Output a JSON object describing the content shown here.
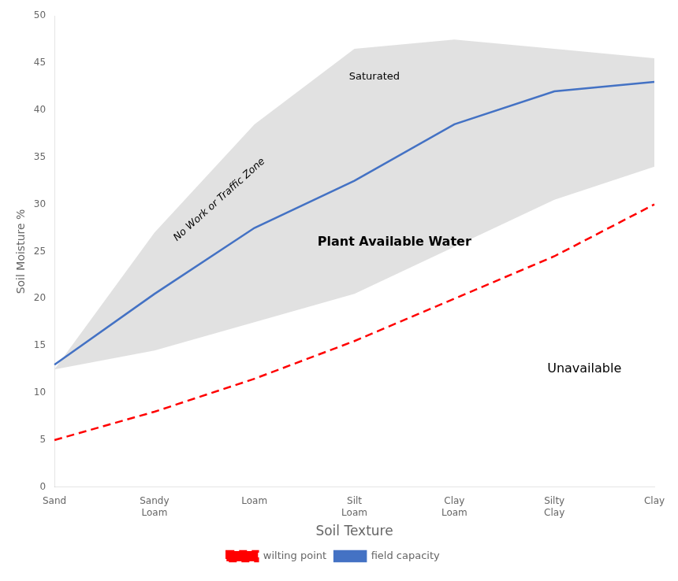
{
  "chart_data": {
    "type": "line",
    "x_label": "Soil Texture",
    "y_label": "Soil Moisture %",
    "categories": [
      "Sand",
      "Sandy\nLoam",
      "Loam",
      "Silt\nLoam",
      "Clay\nLoam",
      "Silty\nClay",
      "Clay"
    ],
    "series": [
      {
        "type": "band",
        "color": "#DCDCDC",
        "lower": [
          12.5,
          14.5,
          17.5,
          20.5,
          25.5,
          30.5,
          34.0
        ],
        "upper": [
          12.5,
          27.0,
          38.5,
          46.5,
          47.5,
          46.5,
          45.5
        ]
      },
      {
        "name": "wilting point",
        "color": "#FF0000",
        "line_style": "dashed",
        "values": [
          5.0,
          8.0,
          11.5,
          15.5,
          20.0,
          24.5,
          30.0
        ]
      },
      {
        "name": "field capacity",
        "color": "#4472C4",
        "line_style": "solid",
        "values": [
          13.0,
          20.5,
          27.5,
          32.5,
          38.5,
          42.0,
          43.0
        ]
      }
    ],
    "ylim": [
      0,
      50
    ],
    "yticks": [
      0,
      5,
      10,
      15,
      20,
      25,
      30,
      35,
      40,
      45,
      50
    ],
    "grid": false,
    "legend": "bottom",
    "annotations": [
      {
        "text": "Saturated",
        "x": 3.2,
        "y": 43.5
      },
      {
        "text": "No Work or Traffic Zone",
        "x": 1.65,
        "y": 30.5
      },
      {
        "text": "Plant Available Water",
        "x": 3.4,
        "y": 26.0
      },
      {
        "text": "Unavailable",
        "x": 5.3,
        "y": 12.5
      }
    ],
    "background_color": "#ffffff"
  }
}
